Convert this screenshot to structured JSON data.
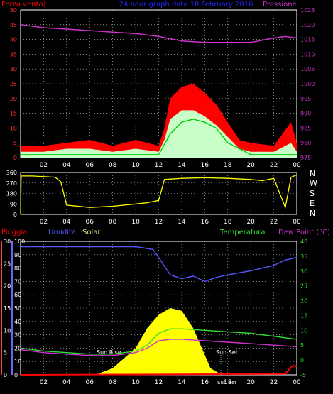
{
  "header": {
    "wind_title": "Forza vento)",
    "center_title": "24 hour graph data  18 February 2016",
    "pressure_title": "Pressione"
  },
  "lower_header": {
    "rain": "Pioggia",
    "humidity": "Umidita",
    "solar": "Solar",
    "temperature": "Temperatura",
    "dewpoint": "Dew Point (°C)"
  },
  "compass": [
    "N",
    "W",
    "S",
    "E",
    "N"
  ],
  "sun": {
    "rise": "Sun Rise",
    "set": "Sun Set",
    "set2": "Sun Set"
  },
  "colors": {
    "wind": "#ff0000",
    "gust": "#c8ffc8",
    "windavg": "#00cc00",
    "pressure": "#cc33cc",
    "direction": "#ffff00",
    "humidity": "#5555ff",
    "solar": "#ffff00",
    "temperature": "#33dd33",
    "dewpoint": "#cc33cc",
    "rain": "#ff0000",
    "grid": "#cccccc",
    "axis": "#ffffff",
    "title_blue": "#2222ff"
  },
  "chart_data": [
    {
      "type": "area",
      "title": "24 hour graph data  18 February 2016",
      "xlabels": [
        "02",
        "04",
        "06",
        "08",
        "10",
        "12",
        "14",
        "16",
        "18",
        "20",
        "22",
        "00"
      ],
      "xlim": [
        0,
        24
      ],
      "left_axis": {
        "label": "Forza vento)",
        "ticks": [
          0,
          5,
          10,
          15,
          20,
          25,
          30,
          35,
          40,
          45,
          50
        ],
        "ylim": [
          0,
          50
        ]
      },
      "right_axis": {
        "label": "Pressione",
        "ticks": [
          975,
          980,
          985,
          990,
          995,
          1000,
          1005,
          1010,
          1015,
          1020,
          1025
        ],
        "ylim": [
          975,
          1025
        ]
      },
      "series": [
        {
          "axis": "right",
          "x": [
            0,
            2,
            4,
            6,
            8,
            10,
            12,
            14,
            16,
            18,
            20,
            22,
            23,
            24
          ],
          "y": [
            1020,
            1019,
            1018.5,
            1018,
            1017.5,
            1017,
            1016,
            1014.5,
            1014,
            1014,
            1014,
            1015.5,
            1016,
            1015.5
          ]
        },
        {
          "name": "wind",
          "axis": "left",
          "x": [
            0,
            2,
            4,
            6,
            8,
            10,
            12,
            12.5,
            13,
            14,
            15,
            16,
            17,
            18,
            19,
            20,
            22,
            23.5,
            24
          ],
          "y": [
            4,
            4,
            5,
            6,
            4,
            6,
            4,
            10,
            20,
            24,
            25,
            22,
            18,
            12,
            6,
            5,
            4,
            12,
            5
          ]
        },
        {
          "name": "gust",
          "axis": "left",
          "x": [
            0,
            2,
            4,
            6,
            8,
            10,
            12,
            12.5,
            13,
            14,
            15,
            16,
            17,
            18,
            19,
            20,
            22,
            23.5,
            24
          ],
          "y": [
            2,
            2,
            3,
            3,
            2,
            3,
            2,
            6,
            13,
            16,
            16,
            14,
            11,
            7,
            3,
            2,
            2,
            5,
            2
          ]
        },
        {
          "name": "windavg",
          "axis": "left",
          "x": [
            0,
            4,
            8,
            12,
            13,
            14,
            15,
            16,
            17,
            18,
            20,
            24
          ],
          "y": [
            1,
            1,
            1,
            1,
            8,
            12,
            13,
            12,
            10,
            5,
            1,
            1
          ]
        }
      ]
    },
    {
      "type": "line",
      "xlabels": [
        "02",
        "04",
        "06",
        "08",
        "10",
        "12",
        "14",
        "16",
        "18",
        "20",
        "22",
        "00"
      ],
      "ticks": [
        0,
        90,
        180,
        270,
        360
      ],
      "ylim": [
        0,
        360
      ],
      "direction_labels": [
        "N",
        "W",
        "S",
        "E",
        "N"
      ],
      "series": [
        {
          "name": "direction",
          "x": [
            0,
            0.05,
            1,
            3,
            3.5,
            4,
            6,
            8,
            10,
            11,
            12,
            12.5,
            14,
            16,
            18,
            20,
            21,
            22,
            23,
            23.5,
            24
          ],
          "y": [
            0,
            330,
            330,
            320,
            280,
            80,
            60,
            70,
            90,
            100,
            120,
            300,
            310,
            315,
            310,
            300,
            290,
            310,
            60,
            320,
            340
          ]
        }
      ]
    },
    {
      "type": "area",
      "xlabels": [
        "02",
        "04",
        "06",
        "08",
        "10",
        "12",
        "14",
        "16",
        "18",
        "20",
        "22",
        "00"
      ],
      "xlim": [
        0,
        24
      ],
      "left_axis_outer": {
        "label": "Pioggia",
        "ticks": [
          0,
          5,
          10,
          15,
          20,
          25,
          30
        ],
        "ylim": [
          0,
          30
        ]
      },
      "left_axis_inner": {
        "label": "Umidita",
        "ticks": [
          0,
          10,
          20,
          30,
          40,
          50,
          60,
          70,
          80,
          90,
          100
        ],
        "ylim": [
          0,
          100
        ]
      },
      "right_axis": {
        "label": "Dew Point (°C)",
        "ticks": [
          -5,
          0,
          5,
          10,
          15,
          20,
          25,
          30,
          35,
          40
        ],
        "ylim": [
          -5,
          40
        ]
      },
      "annotations": [
        "Sun Rise",
        "Sun Set"
      ],
      "series": [
        {
          "name": "humidity",
          "axis": "inner",
          "x": [
            0,
            2,
            4,
            6,
            8,
            10,
            11.5,
            12,
            13,
            14,
            15,
            16,
            17,
            18,
            20,
            22,
            23,
            24
          ],
          "y": [
            96,
            96,
            96,
            96,
            96,
            96,
            94,
            88,
            75,
            72,
            74,
            70,
            73,
            75,
            78,
            82,
            86,
            88
          ]
        },
        {
          "name": "solar",
          "axis": "inner",
          "x": [
            6.5,
            8,
            10,
            11,
            12,
            13,
            14,
            15,
            16,
            16.5,
            17.5
          ],
          "y": [
            0,
            5,
            20,
            35,
            45,
            50,
            48,
            35,
            15,
            5,
            0
          ]
        },
        {
          "name": "temperature",
          "axis": "right",
          "x": [
            0,
            2,
            4,
            6,
            8,
            10,
            11,
            12,
            13,
            14,
            16,
            18,
            20,
            22,
            24
          ],
          "y": [
            4,
            3,
            2.5,
            2,
            2,
            3,
            5,
            9,
            10.5,
            10.5,
            10,
            9.5,
            9,
            8,
            7
          ]
        },
        {
          "name": "dewpoint",
          "axis": "right",
          "x": [
            0,
            2,
            4,
            6,
            8,
            10,
            11,
            12,
            13,
            14,
            16,
            18,
            20,
            22,
            24
          ],
          "y": [
            3.5,
            2.5,
            2,
            1.5,
            1.5,
            2.5,
            4,
            6.5,
            7,
            7,
            6.5,
            6,
            5.5,
            5,
            4.5
          ]
        },
        {
          "name": "rain",
          "axis": "outer",
          "x": [
            0,
            23,
            23.6,
            24
          ],
          "y": [
            0,
            0.2,
            2,
            2
          ]
        }
      ]
    }
  ]
}
